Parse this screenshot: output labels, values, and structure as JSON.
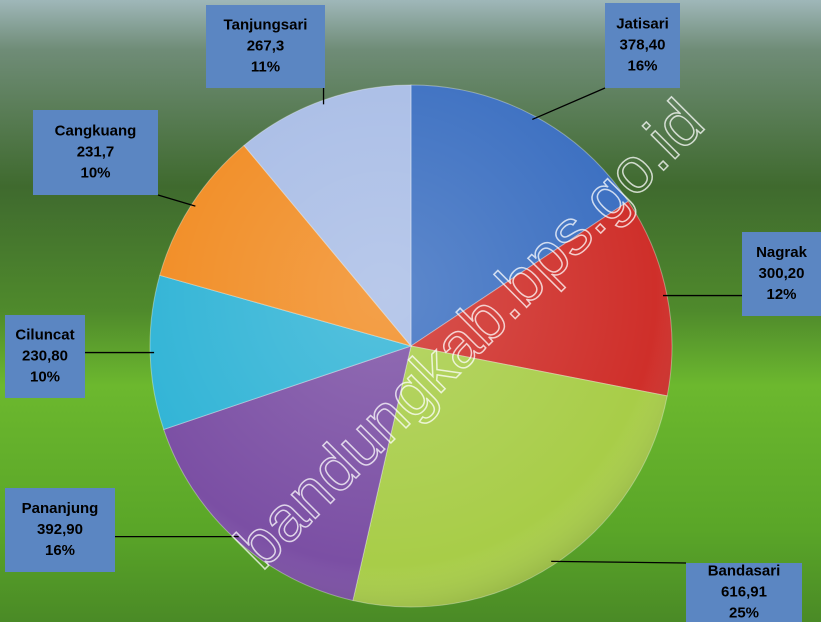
{
  "chart_data": {
    "type": "pie",
    "categories": [
      "Jatisari",
      "Nagrak",
      "Bandasari",
      "Pananjung",
      "Ciluncat",
      "Cangkuang",
      "Tanjungsari"
    ],
    "values": [
      378.4,
      300.2,
      616.91,
      392.9,
      230.8,
      231.7,
      267.3
    ],
    "value_labels": [
      "378,40",
      "300,20",
      "616,91",
      "392,90",
      "230,80",
      "231,7",
      "267,3"
    ],
    "percent_labels": [
      "16%",
      "12%",
      "25%",
      "16%",
      "10%",
      "10%",
      "11%"
    ],
    "colors": [
      "#3b6fc1",
      "#cf2f2a",
      "#a8cd48",
      "#7b4fa4",
      "#31b4d6",
      "#f18c23",
      "#a9bde6"
    ],
    "watermark": "bandungkab.bps.go.id"
  }
}
